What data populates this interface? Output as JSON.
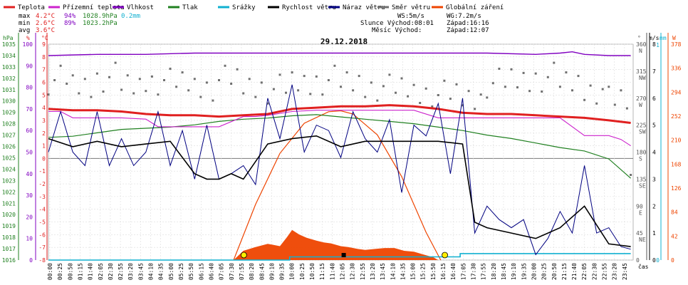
{
  "chart_data": {
    "type": "line",
    "title": "29.12.2018",
    "legend": [
      {
        "name": "Teplota",
        "color": "#e02020"
      },
      {
        "name": "Přízemní teplota",
        "color": "#cc22cc"
      },
      {
        "name": "Vlhkost",
        "color": "#8000c0"
      },
      {
        "name": "Tlak",
        "color": "#208020"
      },
      {
        "name": "Srážky",
        "color": "#10b0d0"
      },
      {
        "name": "Rychlost větru",
        "color": "#000000"
      },
      {
        "name": "Náraz větru",
        "color": "#000080"
      },
      {
        "name": "Směr větru",
        "color": "#707070"
      },
      {
        "name": "Globální záření",
        "color": "#ee4400"
      }
    ],
    "stats": {
      "max": {
        "label": "max",
        "temp": "4.2°C",
        "hum": "94%",
        "press": "1028.9hPa",
        "rain": "0.2mm"
      },
      "min": {
        "label": "min",
        "temp": "2.6°C",
        "hum": "89%",
        "press": "1023.2hPa"
      },
      "avg": {
        "label": "avg",
        "temp": "3.6°C"
      },
      "ws": "WS:5m/s",
      "wg": "WG:7.2m/s",
      "slunce": "Slunce Východ:08:01",
      "slunce_zapad": "Západ:16:16",
      "mesic": "Měsíc  Východ:",
      "mesic_zapad": "Západ:12:07"
    },
    "axes": {
      "hpa_unit": "hPa",
      "pct_unit": "%",
      "c_unit": "°C",
      "dir_unit": "°",
      "ms_unit": "m/s",
      "mm_unit": "mm",
      "w_unit": "W",
      "hpa_ticks": [
        "1035",
        "1034",
        "1033",
        "1032",
        "1031",
        "1030",
        "1029",
        "1028",
        "1027",
        "1026",
        "1025",
        "1024",
        "1023",
        "1022",
        "1021",
        "1020",
        "1019",
        "1018",
        "1017",
        "1016"
      ],
      "pct_ticks": [
        "100",
        "90",
        "80",
        "70",
        "60",
        "50",
        "40",
        "30",
        "20",
        "10",
        "0"
      ],
      "c_ticks": [
        "9",
        "8",
        "7",
        "6",
        "5",
        "4",
        "3",
        "2",
        "1",
        "0",
        "-1",
        "-2",
        "-3",
        "-4",
        "-5",
        "-6",
        "-7",
        "-8"
      ],
      "dir_ticks": [
        "360\nN",
        "315\nNW",
        "270\nW",
        "225\nSW",
        "180\nS",
        "135\nSE",
        "90\nE",
        "45\nNE",
        "0"
      ],
      "ms_ticks": [
        "8",
        "7",
        "6",
        "5",
        "4",
        "3",
        "2",
        "1",
        "0"
      ],
      "mm_ticks": [
        "1",
        "0"
      ],
      "w_ticks": [
        "378",
        "336",
        "294",
        "252",
        "210",
        "168",
        "126",
        "84",
        "42",
        "0"
      ],
      "time_label": "čas",
      "time_ticks": [
        "00:00",
        "00:25",
        "00:50",
        "01:15",
        "01:40",
        "02:05",
        "02:30",
        "02:55",
        "03:20",
        "03:45",
        "04:10",
        "04:35",
        "05:00",
        "05:25",
        "05:50",
        "06:15",
        "06:40",
        "07:05",
        "07:30",
        "07:55",
        "08:20",
        "08:45",
        "09:10",
        "09:35",
        "10:00",
        "10:25",
        "10:50",
        "11:15",
        "11:40",
        "12:05",
        "12:30",
        "12:55",
        "13:20",
        "13:45",
        "14:10",
        "14:35",
        "15:00",
        "15:25",
        "15:50",
        "16:15",
        "16:40",
        "17:05",
        "17:30",
        "17:55",
        "18:20",
        "18:45",
        "19:10",
        "19:35",
        "20:00",
        "20:25",
        "20:50",
        "21:15",
        "21:40",
        "22:05",
        "22:30",
        "22:55",
        "23:20",
        "23:45"
      ]
    },
    "series": {
      "temperature_c": {
        "x_hours": [
          0,
          1,
          2,
          3,
          4,
          5,
          6,
          7,
          8,
          9,
          10,
          11,
          12,
          13,
          14,
          15,
          16,
          17,
          18,
          19,
          20,
          21,
          22,
          23,
          23.9
        ],
        "y": [
          3.9,
          3.8,
          3.8,
          3.7,
          3.5,
          3.4,
          3.4,
          3.3,
          3.4,
          3.5,
          3.9,
          4.0,
          4.1,
          4.1,
          4.2,
          4.1,
          3.9,
          3.6,
          3.5,
          3.5,
          3.4,
          3.3,
          3.2,
          3.0,
          2.8
        ]
      },
      "ground_temp_c": {
        "x_hours": [
          0,
          0.5,
          1,
          2,
          3,
          4,
          4.5,
          5,
          6,
          7,
          8,
          8.5,
          9,
          10,
          11,
          12,
          13,
          14,
          15,
          16,
          17,
          18,
          19,
          20,
          21,
          22,
          23,
          23.5,
          23.9
        ],
        "y": [
          3.7,
          3.7,
          3.2,
          3.2,
          3.2,
          3.1,
          2.5,
          2.5,
          2.5,
          2.5,
          3.3,
          3.3,
          3.4,
          3.7,
          3.8,
          3.8,
          3.8,
          3.8,
          3.8,
          3.2,
          3.2,
          3.2,
          3.2,
          3.2,
          3.2,
          1.8,
          1.8,
          1.5,
          1.0
        ]
      },
      "humidity_pct": {
        "x_hours": [
          0,
          2,
          4,
          6,
          8,
          10,
          12,
          14,
          16,
          18,
          20,
          21,
          21.5,
          22,
          23,
          23.9
        ],
        "y": [
          91,
          92,
          92,
          93,
          93,
          93,
          93,
          93,
          93,
          93,
          92,
          93,
          94,
          92,
          91,
          91
        ]
      },
      "pressure_hpa": {
        "x_hours": [
          0,
          1,
          2,
          3,
          4,
          5,
          6,
          7,
          8,
          9,
          10,
          11,
          12,
          13,
          14,
          15,
          16,
          17,
          18,
          19,
          20,
          21,
          22,
          23,
          23.9
        ],
        "y": [
          1026.8,
          1026.9,
          1027.2,
          1027.5,
          1027.6,
          1027.7,
          1027.9,
          1028.2,
          1028.4,
          1028.5,
          1028.7,
          1028.8,
          1028.6,
          1028.4,
          1028.2,
          1028.0,
          1027.7,
          1027.4,
          1027.0,
          1026.7,
          1026.3,
          1025.9,
          1025.6,
          1024.9,
          1023.2
        ]
      },
      "rain_mm": {
        "x_hours": [
          0,
          9.9,
          9.9,
          16.9,
          16.9,
          17.4,
          17.4,
          23.9
        ],
        "y": [
          0,
          0,
          0.1,
          0.1,
          0.2,
          0.2,
          0.2,
          0.2
        ]
      },
      "wind_speed_ms": {
        "x_hours": [
          0,
          1,
          2,
          3,
          4,
          5,
          6,
          6.5,
          7,
          7.5,
          8,
          9,
          10,
          11,
          12,
          13,
          14,
          15,
          16,
          17,
          17.5,
          18,
          19,
          20,
          21,
          22,
          23,
          23.9
        ],
        "y": [
          4.5,
          4.2,
          4.4,
          4.2,
          4.3,
          4.4,
          3.2,
          3.0,
          3.0,
          3.2,
          3.0,
          4.3,
          4.5,
          4.6,
          4.2,
          4.4,
          4.4,
          4.4,
          4.4,
          4.3,
          1.4,
          1.2,
          1.0,
          0.8,
          1.2,
          2.0,
          0.6,
          0.5
        ]
      },
      "wind_gust_ms": {
        "x_hours": [
          0,
          0.5,
          1,
          1.5,
          2,
          2.5,
          3,
          3.5,
          4,
          4.5,
          5,
          5.5,
          6,
          6.5,
          7,
          7.5,
          8,
          8.5,
          9,
          9.5,
          10,
          10.5,
          11,
          11.5,
          12,
          12.5,
          13,
          13.5,
          14,
          14.5,
          15,
          15.5,
          16,
          16.5,
          17,
          17.5,
          18,
          18.5,
          19,
          19.5,
          20,
          20.5,
          21,
          21.5,
          22,
          22.5,
          23,
          23.5,
          23.9
        ],
        "y": [
          4.0,
          5.5,
          4.0,
          3.5,
          5.5,
          3.5,
          4.5,
          3.5,
          4.0,
          5.5,
          3.5,
          4.8,
          3.0,
          5.0,
          3.0,
          3.2,
          3.5,
          2.8,
          6.0,
          4.5,
          6.5,
          4.0,
          5.0,
          4.8,
          3.8,
          5.5,
          4.5,
          4.0,
          5.2,
          2.5,
          5.0,
          4.6,
          5.8,
          3.2,
          6.0,
          1.0,
          2.0,
          1.5,
          1.2,
          1.5,
          0.2,
          0.8,
          1.8,
          1.0,
          3.5,
          1.0,
          1.2,
          0.5,
          0.4
        ]
      },
      "wind_dir_deg": {
        "x_hours": [
          0,
          1,
          2,
          3,
          4,
          5,
          6,
          7,
          8,
          9,
          10,
          11,
          12,
          13,
          14,
          15,
          16,
          17,
          18,
          19,
          20,
          21,
          22,
          23,
          23.9
        ],
        "y": [
          300,
          290,
          305,
          290,
          300,
          295,
          290,
          300,
          290,
          285,
          295,
          300,
          295,
          290,
          285,
          280,
          275,
          270,
          295,
          300,
          305,
          295,
          285,
          265,
          130
        ]
      },
      "solar_w": {
        "x_hours": [
          7.6,
          8.0,
          8.5,
          9.0,
          9.5,
          9.8,
          10.0,
          10.3,
          10.6,
          11.0,
          11.3,
          11.6,
          12.0,
          12.3,
          12.7,
          13.0,
          13.4,
          13.8,
          14.2,
          14.6,
          15.0,
          15.4,
          15.8,
          16.0
        ],
        "y": [
          0,
          20,
          28,
          35,
          30,
          50,
          65,
          55,
          48,
          42,
          38,
          36,
          30,
          28,
          24,
          22,
          24,
          26,
          26,
          20,
          18,
          12,
          6,
          0
        ]
      },
      "solar_max_w": {
        "x_hours": [
          7.6,
          8.5,
          9.5,
          10.5,
          11.5,
          12.0,
          12.5,
          13.5,
          14.5,
          15.5,
          16.1
        ],
        "y": [
          0,
          120,
          230,
          295,
          320,
          322,
          315,
          270,
          180,
          60,
          0
        ]
      }
    }
  }
}
